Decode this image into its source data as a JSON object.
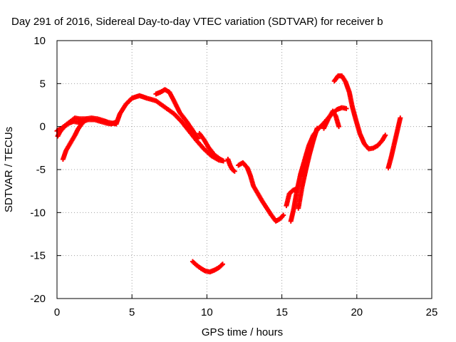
{
  "chart_data": {
    "type": "scatter",
    "title": "Day 291 of 2016, Sidereal Day-to-day VTEC variation (SDTVAR) for receiver b",
    "xlabel": "GPS time / hours",
    "ylabel": "SDTVAR / TECUs",
    "xlim": [
      0,
      25
    ],
    "ylim": [
      -20,
      10
    ],
    "xticks": [
      0,
      5,
      10,
      15,
      20,
      25
    ],
    "yticks": [
      -20,
      -15,
      -10,
      -5,
      0,
      5,
      10
    ],
    "grid": true,
    "marker": "+",
    "color": "#ff0000",
    "series": [
      {
        "points": [
          [
            0.0,
            -0.5
          ],
          [
            0.3,
            -0.2
          ],
          [
            0.6,
            0.2
          ],
          [
            0.9,
            0.6
          ],
          [
            1.2,
            1.0
          ],
          [
            1.5,
            0.9
          ],
          [
            1.9,
            0.9
          ],
          [
            2.3,
            1.0
          ],
          [
            2.7,
            0.9
          ],
          [
            3.1,
            0.7
          ],
          [
            3.4,
            0.5
          ],
          [
            3.7,
            0.4
          ],
          [
            3.95,
            0.3
          ],
          [
            4.2,
            1.5
          ],
          [
            4.6,
            2.6
          ],
          [
            5.0,
            3.3
          ],
          [
            5.5,
            3.6
          ],
          [
            6.0,
            3.3
          ],
          [
            6.6,
            3.0
          ],
          [
            7.0,
            2.5
          ],
          [
            7.4,
            2.0
          ],
          [
            7.8,
            1.5
          ],
          [
            8.3,
            0.6
          ],
          [
            8.8,
            -0.5
          ],
          [
            9.3,
            -1.6
          ],
          [
            9.8,
            -2.6
          ],
          [
            10.3,
            -3.4
          ],
          [
            10.8,
            -3.9
          ],
          [
            11.1,
            -4.0
          ]
        ]
      },
      {
        "points": [
          [
            0.05,
            -1.1
          ],
          [
            0.2,
            -0.6
          ],
          [
            0.5,
            0.0
          ],
          [
            0.8,
            0.4
          ],
          [
            1.1,
            0.6
          ],
          [
            1.4,
            0.5
          ],
          [
            1.7,
            0.7
          ],
          [
            2.1,
            0.8
          ],
          [
            2.5,
            0.8
          ],
          [
            2.9,
            0.6
          ],
          [
            3.3,
            0.4
          ],
          [
            3.6,
            0.3
          ],
          [
            3.9,
            0.5
          ]
        ]
      },
      {
        "points": [
          [
            0.4,
            -3.8
          ],
          [
            0.6,
            -2.8
          ],
          [
            0.8,
            -2.2
          ],
          [
            1.0,
            -1.6
          ],
          [
            1.2,
            -1.0
          ],
          [
            1.4,
            -0.3
          ],
          [
            1.6,
            0.2
          ],
          [
            1.8,
            0.6
          ],
          [
            2.0,
            0.8
          ]
        ]
      },
      {
        "points": [
          [
            6.6,
            3.8
          ],
          [
            6.9,
            4.0
          ],
          [
            7.2,
            4.3
          ],
          [
            7.5,
            4.0
          ],
          [
            7.8,
            3.0
          ],
          [
            8.2,
            1.6
          ],
          [
            8.6,
            0.7
          ],
          [
            9.0,
            -0.3
          ],
          [
            9.4,
            -1.4
          ]
        ]
      },
      {
        "points": [
          [
            9.5,
            -0.8
          ],
          [
            9.8,
            -1.5
          ],
          [
            10.1,
            -2.4
          ],
          [
            10.5,
            -3.3
          ],
          [
            10.9,
            -3.8
          ],
          [
            11.1,
            -4.0
          ]
        ]
      },
      {
        "points": [
          [
            11.4,
            -3.8
          ],
          [
            11.55,
            -4.5
          ],
          [
            11.7,
            -5.0
          ],
          [
            11.85,
            -5.2
          ]
        ]
      },
      {
        "points": [
          [
            12.1,
            -4.5
          ],
          [
            12.4,
            -4.2
          ],
          [
            12.7,
            -4.8
          ],
          [
            12.9,
            -5.7
          ],
          [
            13.1,
            -6.9
          ],
          [
            13.4,
            -7.8
          ],
          [
            13.7,
            -8.7
          ],
          [
            14.0,
            -9.5
          ],
          [
            14.3,
            -10.3
          ],
          [
            14.6,
            -11.0
          ],
          [
            14.9,
            -10.7
          ],
          [
            15.1,
            -10.3
          ]
        ]
      },
      {
        "points": [
          [
            15.3,
            -9.2
          ],
          [
            15.5,
            -7.8
          ],
          [
            15.75,
            -7.4
          ],
          [
            15.9,
            -7.3
          ]
        ]
      },
      {
        "points": [
          [
            15.6,
            -11.0
          ],
          [
            15.8,
            -9.5
          ],
          [
            16.0,
            -7.5
          ],
          [
            16.25,
            -5.5
          ],
          [
            16.5,
            -4.0
          ],
          [
            16.8,
            -2.2
          ],
          [
            17.1,
            -1.0
          ],
          [
            17.4,
            -0.3
          ],
          [
            17.7,
            0.2
          ],
          [
            18.0,
            0.8
          ],
          [
            18.4,
            1.6
          ],
          [
            18.7,
            2.0
          ],
          [
            19.0,
            2.2
          ],
          [
            19.3,
            2.1
          ]
        ]
      },
      {
        "points": [
          [
            16.1,
            -9.5
          ],
          [
            16.35,
            -7.0
          ],
          [
            16.6,
            -5.0
          ],
          [
            16.85,
            -3.2
          ],
          [
            17.1,
            -1.6
          ],
          [
            17.35,
            -0.2
          ]
        ]
      },
      {
        "points": [
          [
            17.8,
            -0.2
          ],
          [
            18.1,
            0.9
          ],
          [
            18.4,
            1.8
          ],
          [
            18.6,
            1.2
          ],
          [
            18.8,
            0.0
          ]
        ]
      },
      {
        "points": [
          [
            18.5,
            5.3
          ],
          [
            18.75,
            5.9
          ],
          [
            19.0,
            5.9
          ],
          [
            19.25,
            5.2
          ],
          [
            19.5,
            4.0
          ],
          [
            19.7,
            2.3
          ],
          [
            19.95,
            0.7
          ],
          [
            20.2,
            -0.8
          ],
          [
            20.5,
            -2.0
          ],
          [
            20.8,
            -2.6
          ],
          [
            21.1,
            -2.5
          ],
          [
            21.4,
            -2.2
          ],
          [
            21.7,
            -1.6
          ],
          [
            21.9,
            -1.0
          ]
        ]
      },
      {
        "points": [
          [
            22.1,
            -4.8
          ],
          [
            22.3,
            -3.5
          ],
          [
            22.5,
            -2.0
          ],
          [
            22.7,
            -0.5
          ],
          [
            22.9,
            1.0
          ]
        ]
      },
      {
        "points": [
          [
            9.05,
            -15.7
          ],
          [
            9.3,
            -16.1
          ],
          [
            9.6,
            -16.5
          ],
          [
            9.9,
            -16.8
          ],
          [
            10.2,
            -16.9
          ],
          [
            10.5,
            -16.7
          ],
          [
            10.8,
            -16.4
          ],
          [
            11.05,
            -16.0
          ]
        ]
      }
    ]
  }
}
